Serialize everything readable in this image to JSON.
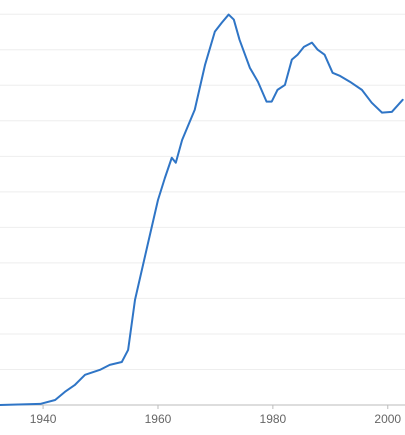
{
  "chart_data": {
    "type": "line",
    "x": [
      1932.5,
      1939.5,
      1942.1,
      1943.8,
      1945.5,
      1947.3,
      1949.9,
      1951.6,
      1953.7,
      1954.8,
      1956.0,
      1958.2,
      1960.0,
      1961.2,
      1962.4,
      1963.1,
      1964.2,
      1966.4,
      1968.2,
      1969.9,
      1971.1,
      1972.3,
      1973.2,
      1974.2,
      1976.0,
      1977.4,
      1978.9,
      1979.8,
      1980.8,
      1982.1,
      1983.3,
      1984.3,
      1985.4,
      1986.8,
      1987.8,
      1989.0,
      1990.4,
      1991.6,
      1993.4,
      1995.5,
      1997.2,
      1999.0,
      2000.7,
      2002.6
    ],
    "series": [
      {
        "color": "#2f75c6",
        "values": [
          0,
          0.03,
          0.14,
          0.37,
          0.56,
          0.85,
          0.99,
          1.13,
          1.21,
          1.55,
          2.96,
          4.51,
          5.77,
          6.39,
          6.96,
          6.82,
          7.46,
          8.31,
          9.58,
          10.51,
          10.76,
          10.99,
          10.85,
          10.28,
          9.49,
          9.1,
          8.54,
          8.54,
          8.87,
          9.01,
          9.72,
          9.86,
          10.08,
          10.2,
          10.0,
          9.86,
          9.35,
          9.27,
          9.1,
          8.87,
          8.51,
          8.23,
          8.25,
          8.59
        ]
      }
    ],
    "xlim": [
      1932.5,
      2003
    ],
    "xticks": [
      1940,
      1960,
      1980,
      2000
    ],
    "ylim": [
      0,
      11.4
    ],
    "yticks": [
      0,
      1,
      2,
      3,
      4,
      5,
      6,
      7,
      8,
      9,
      10,
      11
    ],
    "grid": true
  }
}
